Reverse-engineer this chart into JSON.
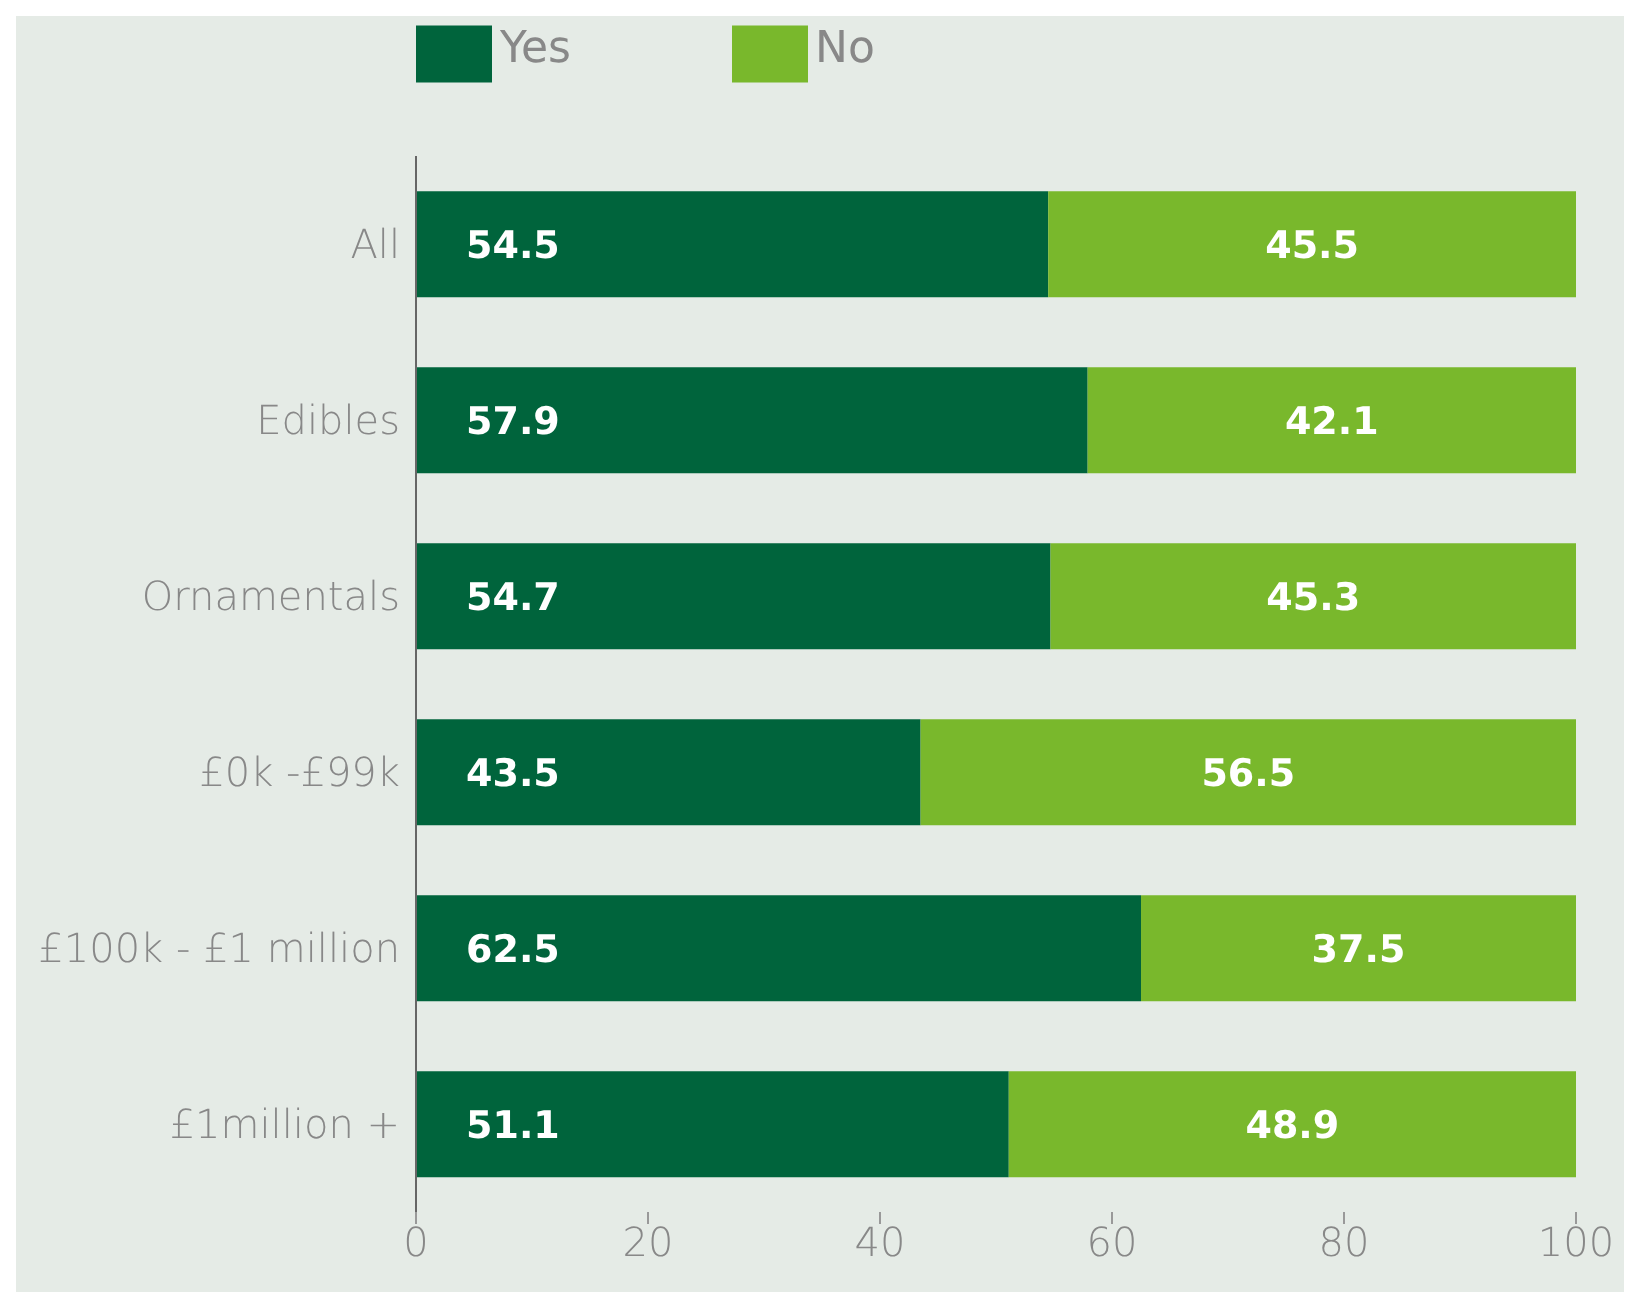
{
  "chart_data": {
    "type": "bar",
    "orientation": "horizontal",
    "stacked": true,
    "categories": [
      "All",
      "Edibles",
      "Ornamentals",
      "£0k -£99k",
      "£100k - £1 million",
      "£1million +"
    ],
    "series": [
      {
        "name": "Yes",
        "color": "#00643c",
        "values": [
          54.5,
          57.9,
          54.7,
          43.5,
          62.5,
          51.1
        ]
      },
      {
        "name": "No",
        "color": "#79b82c",
        "values": [
          45.5,
          42.1,
          45.3,
          56.5,
          37.5,
          48.9
        ]
      }
    ],
    "xlim": [
      0,
      100
    ],
    "xticks": [
      0,
      20,
      40,
      60,
      80,
      100
    ],
    "data_labels": true,
    "legend": "top left",
    "grid": false
  }
}
